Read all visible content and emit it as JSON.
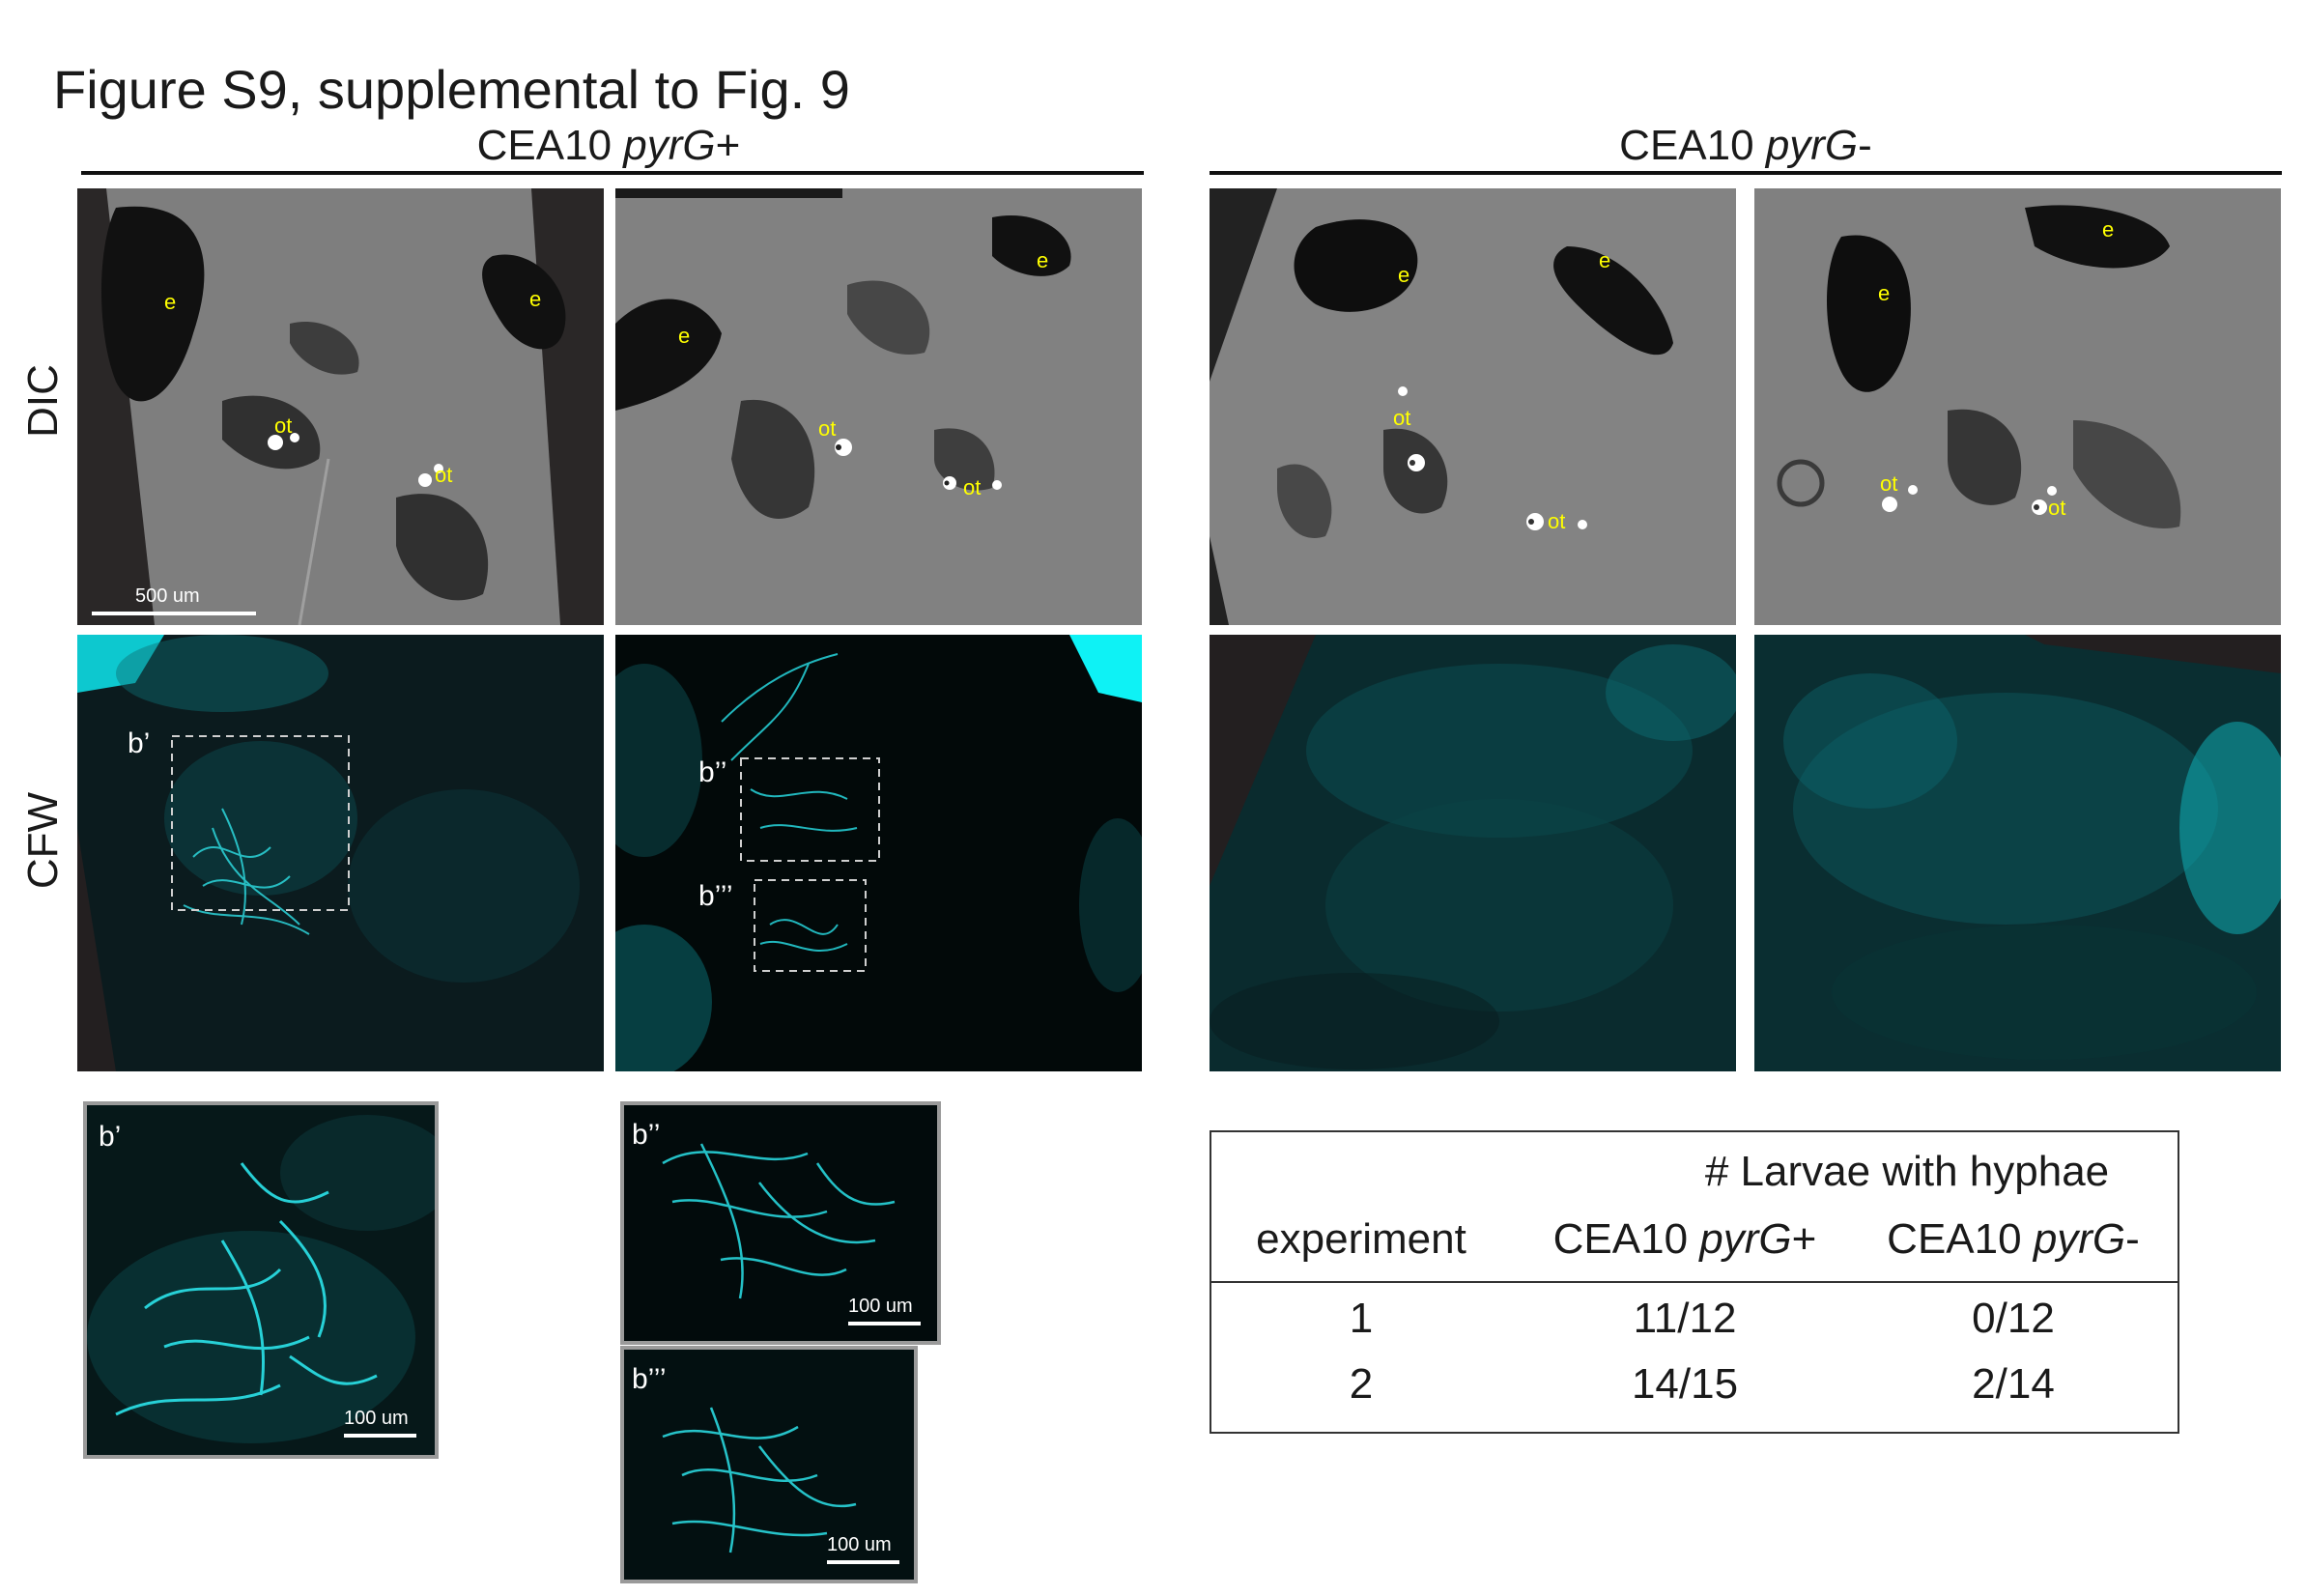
{
  "figure": {
    "title": "Figure S9, supplemental to Fig. 9",
    "conditions": [
      {
        "prefix": "CEA10 ",
        "strain": "pyrG",
        "suffix": "+"
      },
      {
        "prefix": "CEA10 ",
        "strain": "pyrG",
        "suffix": "-"
      }
    ],
    "row_labels": {
      "dic": "DIC",
      "cfw": "CFW"
    },
    "panel_labels": {
      "eye": "e",
      "otolith": "ot",
      "b1": "b’",
      "b2": "b’’",
      "b3": "b’’’"
    },
    "scale_bars": {
      "dic": "500 um",
      "inset": "100 um"
    }
  },
  "table": {
    "group_header": "# Larvae with hyphae",
    "col_experiment": "experiment",
    "col_pos": {
      "prefix": "CEA10 ",
      "strain": "pyrG",
      "suffix": "+"
    },
    "col_neg": {
      "prefix": "CEA10 ",
      "strain": "pyrG",
      "suffix": "-"
    },
    "rows": [
      {
        "experiment": "1",
        "pos": "11/12",
        "neg": "0/12"
      },
      {
        "experiment": "2",
        "pos": "14/15",
        "neg": "2/14"
      }
    ]
  },
  "colors": {
    "cfw_signal": "#00e5ef",
    "annotation_yellow": "#ffff00",
    "dic_background": "#7d7d7d"
  }
}
